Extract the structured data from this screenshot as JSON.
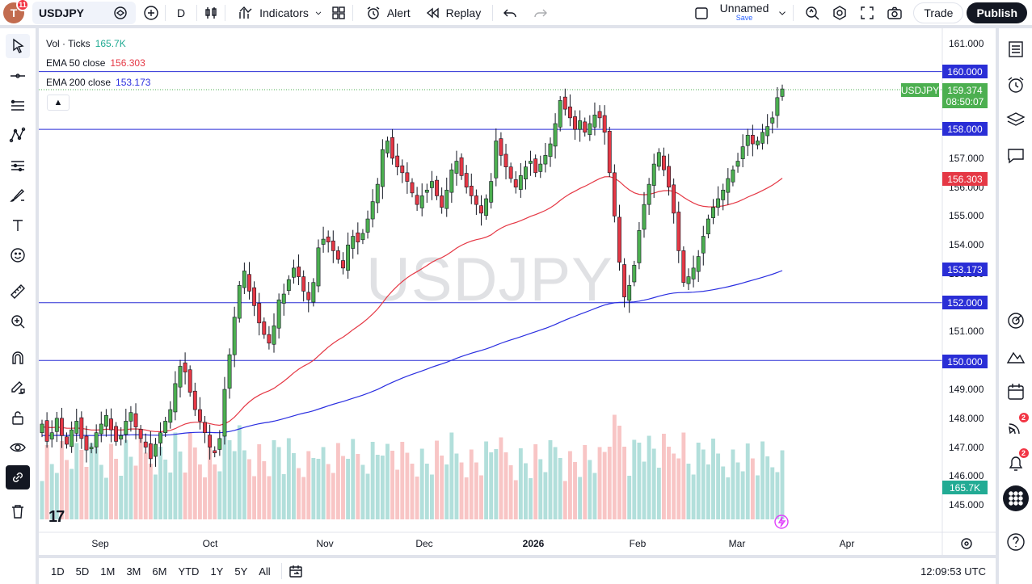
{
  "topbar": {
    "avatar_letter": "T",
    "avatar_badge": "11",
    "symbol": "USDJPY",
    "interval": "D",
    "indicators_label": "Indicators",
    "alert_label": "Alert",
    "replay_label": "Replay",
    "layout_name": "Unnamed",
    "layout_save": "Save",
    "trade_label": "Trade",
    "publish_label": "Publish"
  },
  "legend": {
    "vol_label": "Vol · Ticks",
    "vol_value": "165.7K",
    "ema50_label": "EMA 50 close",
    "ema50_value": "156.303",
    "ema200_label": "EMA 200 close",
    "ema200_value": "153.173"
  },
  "watermark": "USDJPY",
  "colors": {
    "up": "#4caf50",
    "down": "#e53845",
    "ema50": "#e53845",
    "ema200": "#2a2ee0",
    "hline": "#2a2ed6",
    "vol_up": "#b2dfdb",
    "vol_down": "#f8c5c5"
  },
  "price_axis": {
    "ticks": [
      "161.000",
      "160.000",
      "157.000",
      "156.000",
      "155.000",
      "154.000",
      "153.000",
      "151.000",
      "150.000",
      "149.000",
      "148.000",
      "147.000",
      "146.000",
      "145.000"
    ],
    "labels": {
      "symbol_tag": "USDJPY",
      "last_price": "159.374",
      "countdown": "08:50:07",
      "h160": "160.000",
      "h158": "158.000",
      "ema50": "156.303",
      "ema200": "153.173",
      "h152": "152.000",
      "h150": "150.000",
      "volume": "165.7K"
    }
  },
  "time_axis": [
    "Sep",
    "Oct",
    "Nov",
    "Dec",
    "2026",
    "Feb",
    "Mar",
    "Apr"
  ],
  "bottombar": {
    "ranges": [
      "1D",
      "5D",
      "1M",
      "3M",
      "6M",
      "YTD",
      "1Y",
      "5Y",
      "All"
    ],
    "clock": "12:09:53 UTC"
  },
  "righttb": {
    "ideas_badge": "2",
    "alerts_badge": "2"
  },
  "chart_data": {
    "type": "candlestick",
    "title": "USDJPY",
    "ylim": [
      144.5,
      161.5
    ],
    "horizontal_lines": [
      160.0,
      158.0,
      152.0,
      150.0
    ],
    "ema50_last": 156.303,
    "ema200_last": 153.173,
    "last_price": 159.374,
    "x": [
      "Sep",
      "Oct",
      "Nov",
      "Dec",
      "2026",
      "Feb",
      "Mar",
      "Apr"
    ],
    "ohlc_closes": [
      147.8,
      147.2,
      147.5,
      148.0,
      147.4,
      147.1,
      147.6,
      147.9,
      147.3,
      146.9,
      147.0,
      147.5,
      147.8,
      148.1,
      147.6,
      147.2,
      147.4,
      147.9,
      148.2,
      147.7,
      147.3,
      147.0,
      146.6,
      147.1,
      147.5,
      147.9,
      148.3,
      149.2,
      149.8,
      149.6,
      148.9,
      148.3,
      147.9,
      147.5,
      147.0,
      146.8,
      147.3,
      149.0,
      150.2,
      151.5,
      152.6,
      153.1,
      152.4,
      151.9,
      151.3,
      150.9,
      150.6,
      151.2,
      152.1,
      152.3,
      152.8,
      153.2,
      152.9,
      152.4,
      152.1,
      152.7,
      153.9,
      154.2,
      154.1,
      153.8,
      153.5,
      153.2,
      154.0,
      154.3,
      154.1,
      154.4,
      154.9,
      155.5,
      156.1,
      157.3,
      157.6,
      157.0,
      156.7,
      156.5,
      156.2,
      155.8,
      155.4,
      155.7,
      155.9,
      156.2,
      155.7,
      155.3,
      155.9,
      156.6,
      156.9,
      156.4,
      156.0,
      155.7,
      155.4,
      155.1,
      155.6,
      156.2,
      157.6,
      157.1,
      156.7,
      156.3,
      156.0,
      156.4,
      156.7,
      156.9,
      156.5,
      156.8,
      157.1,
      157.5,
      158.2,
      159.0,
      158.7,
      158.4,
      158.0,
      158.3,
      157.9,
      158.2,
      158.5,
      158.4,
      157.9,
      156.5,
      155.0,
      153.4,
      152.2,
      152.6,
      153.3,
      154.5,
      155.4,
      156.1,
      156.8,
      157.2,
      156.6,
      156.0,
      155.1,
      153.8,
      152.7,
      152.9,
      153.2,
      153.6,
      154.3,
      154.9,
      155.3,
      155.6,
      155.9,
      156.3,
      156.6,
      156.9,
      157.4,
      157.8,
      157.5,
      157.6,
      157.9,
      158.1,
      158.4,
      159.1,
      159.4
    ]
  }
}
